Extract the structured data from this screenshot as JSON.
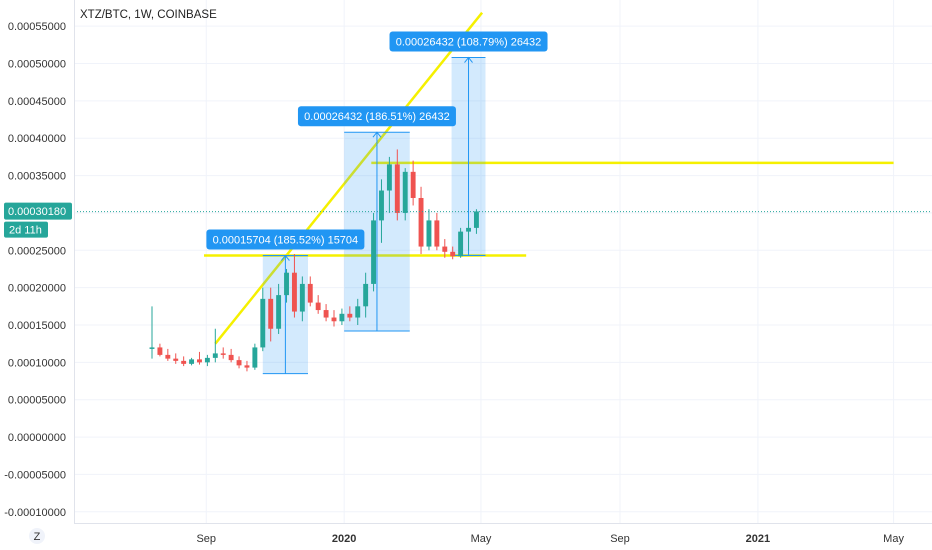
{
  "chart_data": {
    "type": "candlestick",
    "title": "XTZ/BTC, 1W, COINBASE",
    "y_ticks": [
      "0.00055000",
      "0.00050000",
      "0.00045000",
      "0.00040000",
      "0.00035000",
      "0.00030000",
      "0.00025000",
      "0.00020000",
      "0.00015000",
      "0.00010000",
      "0.00005000",
      "0.00000000",
      "-0.00005000",
      "-0.00010000"
    ],
    "x_ticks": [
      {
        "label": "Sep",
        "date": "2019-09-01",
        "bold": false
      },
      {
        "label": "2020",
        "date": "2020-01-01",
        "bold": true
      },
      {
        "label": "May",
        "date": "2020-05-01",
        "bold": false
      },
      {
        "label": "Sep",
        "date": "2020-09-01",
        "bold": false
      },
      {
        "label": "2021",
        "date": "2021-01-01",
        "bold": true
      },
      {
        "label": "May",
        "date": "2021-05-01",
        "bold": false
      }
    ],
    "y_range": [
      -0.000115,
      0.000585
    ],
    "x_range": [
      "2019-05-07",
      "2021-06-04"
    ],
    "current_price": {
      "value": 0.0003018,
      "label": "0.00030180",
      "countdown": "2d 11h",
      "color": "#26a69a"
    },
    "candles": [
      {
        "date": "2019-07-15",
        "open": 0.000118,
        "high": 0.000175,
        "low": 0.000105,
        "close": 0.00012
      },
      {
        "date": "2019-07-22",
        "open": 0.00012,
        "high": 0.000125,
        "low": 0.000108,
        "close": 0.00011
      },
      {
        "date": "2019-07-29",
        "open": 0.00011,
        "high": 0.000118,
        "low": 0.000102,
        "close": 0.000105
      },
      {
        "date": "2019-08-05",
        "open": 0.000105,
        "high": 0.000112,
        "low": 9.8e-05,
        "close": 0.000102
      },
      {
        "date": "2019-08-12",
        "open": 0.000102,
        "high": 0.000108,
        "low": 9.5e-05,
        "close": 9.8e-05
      },
      {
        "date": "2019-08-19",
        "open": 9.8e-05,
        "high": 0.000106,
        "low": 9.6e-05,
        "close": 0.000104
      },
      {
        "date": "2019-08-26",
        "open": 0.000104,
        "high": 0.000114,
        "low": 9.7e-05,
        "close": 0.0001
      },
      {
        "date": "2019-09-02",
        "open": 0.0001,
        "high": 0.00011,
        "low": 9.5e-05,
        "close": 0.000106
      },
      {
        "date": "2019-09-09",
        "open": 0.000106,
        "high": 0.000145,
        "low": 0.0001,
        "close": 0.000112
      },
      {
        "date": "2019-09-16",
        "open": 0.000112,
        "high": 0.00012,
        "low": 0.000105,
        "close": 0.00011
      },
      {
        "date": "2019-09-23",
        "open": 0.00011,
        "high": 0.000118,
        "low": 0.0001,
        "close": 0.000103
      },
      {
        "date": "2019-09-30",
        "open": 0.000103,
        "high": 0.000108,
        "low": 9.2e-05,
        "close": 9.6e-05
      },
      {
        "date": "2019-10-07",
        "open": 9.6e-05,
        "high": 0.000102,
        "low": 8.8e-05,
        "close": 9.3e-05
      },
      {
        "date": "2019-10-14",
        "open": 9.3e-05,
        "high": 0.000125,
        "low": 9e-05,
        "close": 0.00012
      },
      {
        "date": "2019-10-21",
        "open": 0.00012,
        "high": 0.0002,
        "low": 0.000115,
        "close": 0.000185
      },
      {
        "date": "2019-10-28",
        "open": 0.000185,
        "high": 0.0002,
        "low": 0.000128,
        "close": 0.000145
      },
      {
        "date": "2019-11-04",
        "open": 0.000145,
        "high": 0.000205,
        "low": 0.000138,
        "close": 0.00019
      },
      {
        "date": "2019-11-11",
        "open": 0.00019,
        "high": 0.000225,
        "low": 0.00018,
        "close": 0.00022
      },
      {
        "date": "2019-11-18",
        "open": 0.00022,
        "high": 0.000245,
        "low": 0.00016,
        "close": 0.000168
      },
      {
        "date": "2019-11-25",
        "open": 0.000168,
        "high": 0.000215,
        "low": 0.000155,
        "close": 0.000205
      },
      {
        "date": "2019-12-02",
        "open": 0.000205,
        "high": 0.000215,
        "low": 0.000175,
        "close": 0.00018
      },
      {
        "date": "2019-12-09",
        "open": 0.00018,
        "high": 0.00019,
        "low": 0.000165,
        "close": 0.00017
      },
      {
        "date": "2019-12-16",
        "open": 0.00017,
        "high": 0.000178,
        "low": 0.000155,
        "close": 0.00016
      },
      {
        "date": "2019-12-23",
        "open": 0.00016,
        "high": 0.00017,
        "low": 0.000148,
        "close": 0.000155
      },
      {
        "date": "2019-12-30",
        "open": 0.000155,
        "high": 0.000172,
        "low": 0.00015,
        "close": 0.000165
      },
      {
        "date": "2020-01-06",
        "open": 0.000165,
        "high": 0.000175,
        "low": 0.000155,
        "close": 0.00016
      },
      {
        "date": "2020-01-13",
        "open": 0.00016,
        "high": 0.000185,
        "low": 0.00015,
        "close": 0.000175
      },
      {
        "date": "2020-01-20",
        "open": 0.000175,
        "high": 0.00022,
        "low": 0.00016,
        "close": 0.000205
      },
      {
        "date": "2020-01-27",
        "open": 0.000205,
        "high": 0.0003,
        "low": 0.000195,
        "close": 0.00029
      },
      {
        "date": "2020-02-03",
        "open": 0.00029,
        "high": 0.000345,
        "low": 0.00026,
        "close": 0.00033
      },
      {
        "date": "2020-02-10",
        "open": 0.00033,
        "high": 0.000375,
        "low": 0.0003,
        "close": 0.000365
      },
      {
        "date": "2020-02-17",
        "open": 0.000365,
        "high": 0.000385,
        "low": 0.00029,
        "close": 0.0003
      },
      {
        "date": "2020-02-24",
        "open": 0.0003,
        "high": 0.00036,
        "low": 0.00029,
        "close": 0.000355
      },
      {
        "date": "2020-03-02",
        "open": 0.000355,
        "high": 0.00037,
        "low": 0.00031,
        "close": 0.00032
      },
      {
        "date": "2020-03-09",
        "open": 0.00032,
        "high": 0.000335,
        "low": 0.000245,
        "close": 0.000255
      },
      {
        "date": "2020-03-16",
        "open": 0.000255,
        "high": 0.000305,
        "low": 0.00025,
        "close": 0.00029
      },
      {
        "date": "2020-03-23",
        "open": 0.00029,
        "high": 0.0003,
        "low": 0.00025,
        "close": 0.000255
      },
      {
        "date": "2020-03-30",
        "open": 0.000255,
        "high": 0.000265,
        "low": 0.00024,
        "close": 0.000248
      },
      {
        "date": "2020-04-06",
        "open": 0.000248,
        "high": 0.000255,
        "low": 0.000238,
        "close": 0.000242
      },
      {
        "date": "2020-04-13",
        "open": 0.000242,
        "high": 0.00028,
        "low": 0.00024,
        "close": 0.000275
      },
      {
        "date": "2020-04-20",
        "open": 0.000275,
        "high": 0.00029,
        "low": 0.00025,
        "close": 0.00028
      },
      {
        "date": "2020-04-27",
        "open": 0.00028,
        "high": 0.000305,
        "low": 0.000272,
        "close": 0.000302
      }
    ],
    "horizontal_lines": [
      {
        "price": 0.000367,
        "from": "2020-01-25",
        "to": "2021-05-01",
        "color": "#f5f000"
      },
      {
        "price": 0.000243,
        "from": "2019-08-30",
        "to": "2020-06-10",
        "color": "#f5f000"
      }
    ],
    "trend_line": {
      "from_date": "2019-09-09",
      "from_price": 0.000125,
      "to_date": "2020-05-02",
      "to_price": 0.000568,
      "color": "#f5f000"
    },
    "measurements": [
      {
        "from_date": "2019-10-21",
        "to_date": "2019-11-30",
        "low": 8.5e-05,
        "high": 0.000243,
        "label": "0.00015704 (185.52%) 15704"
      },
      {
        "from_date": "2020-01-01",
        "to_date": "2020-02-28",
        "low": 0.000142,
        "high": 0.000408,
        "label": "0.00026432 (186.51%) 26432"
      },
      {
        "from_date": "2020-04-05",
        "to_date": "2020-05-05",
        "low": 0.000243,
        "high": 0.000508,
        "label": "0.00026432 (108.79%) 26432"
      }
    ],
    "colors": {
      "up": "#26a69a",
      "down": "#ef5350",
      "measure_fill": "#2196f3",
      "measure_label": "#2196f3",
      "grid": "#f0f3fa"
    }
  },
  "ui": {
    "logo_letter": "Z"
  }
}
